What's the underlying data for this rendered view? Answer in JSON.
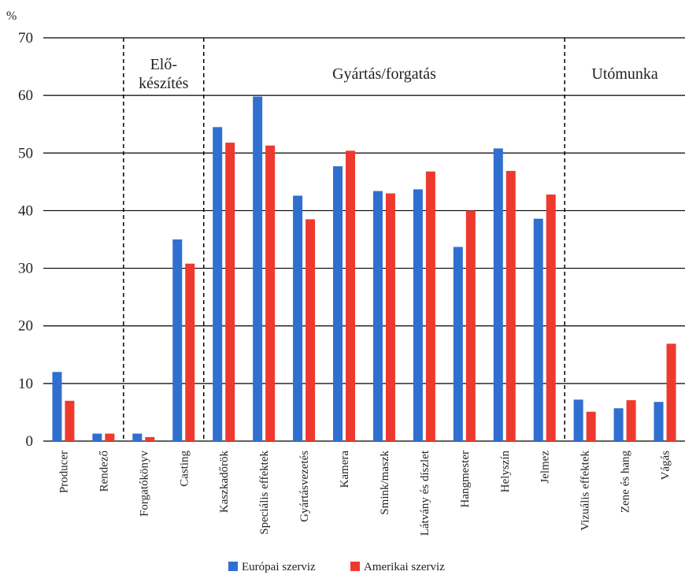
{
  "chart_data": {
    "type": "bar",
    "ylabel": "%",
    "ylim": [
      0,
      70
    ],
    "yticks": [
      0,
      10,
      20,
      30,
      40,
      50,
      60,
      70
    ],
    "grid": true,
    "legend_position": "bottom",
    "categories": [
      "Producer",
      "Rendező",
      "Forgatókönyv",
      "Casting",
      "Kaszkadőrök",
      "Speciális effektek",
      "Gyártásvezetés",
      "Kamera",
      "Smink/maszk",
      "Látvány és díszlet",
      "Hangmester",
      "Helyszín",
      "Jelmez",
      "Vizuális effektek",
      "Zene és hang",
      "Vágás"
    ],
    "series": [
      {
        "name": "Európai szerviz",
        "color": "#2f6fd0",
        "values": [
          12.0,
          1.3,
          1.3,
          35.0,
          54.5,
          59.8,
          42.6,
          47.7,
          43.4,
          43.7,
          33.7,
          50.8,
          38.6,
          7.2,
          5.7,
          6.8
        ]
      },
      {
        "name": "Amerikai szerviz",
        "color": "#ee3a2e",
        "values": [
          7.0,
          1.3,
          0.7,
          30.8,
          51.8,
          51.3,
          38.5,
          50.4,
          43.0,
          46.8,
          40.0,
          46.9,
          42.8,
          5.1,
          7.1,
          16.9
        ]
      }
    ],
    "sections": [
      {
        "label_lines": [
          "Elő-",
          "készítés"
        ],
        "start": 2,
        "end": 3
      },
      {
        "label_lines": [
          "Gyártás/forgatás"
        ],
        "start": 4,
        "end": 12
      },
      {
        "label_lines": [
          "Utómunka"
        ],
        "start": 13,
        "end": 15
      }
    ]
  }
}
